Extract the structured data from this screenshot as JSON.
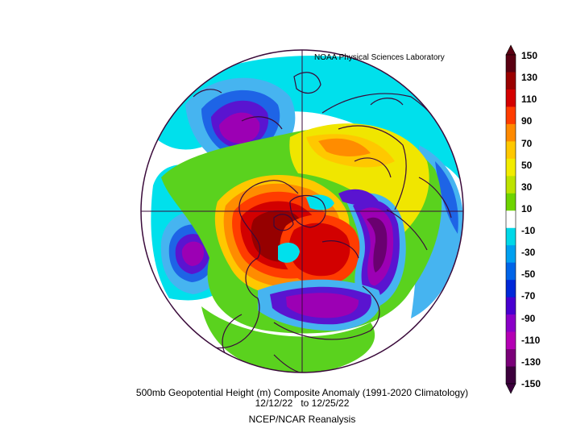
{
  "credit": "NOAA Physical Sciences Laboratory",
  "title_line1": "500mb Geopotential Height (m) Composite Anomaly (1991-2020 Climatology)",
  "title_line2": "12/12/22   to 12/25/22",
  "title_line3": "NCEP/NCAR Reanalysis",
  "colorbar": {
    "labels": [
      "150",
      "130",
      "110",
      "90",
      "70",
      "50",
      "30",
      "10",
      "-10",
      "-30",
      "-50",
      "-70",
      "-90",
      "-110",
      "-130",
      "-150"
    ],
    "colors": [
      "#5a0012",
      "#9a0000",
      "#d40000",
      "#ff3c00",
      "#ff8a00",
      "#ffc800",
      "#f2ec00",
      "#bde300",
      "#6ed400",
      "#ffffff",
      "#00d8e8",
      "#00a0f0",
      "#0064e8",
      "#0028d8",
      "#4800d0",
      "#8a00c8",
      "#b400b4",
      "#7a0078",
      "#3c003c"
    ],
    "top_arrow_color": "#5a0012",
    "bottom_arrow_color": "#3c003c"
  },
  "map_colors": {
    "deep_purple": "#6a0070",
    "purple": "#9c00b4",
    "violet": "#5a14d0",
    "blue": "#1e64e6",
    "light_blue": "#46b4f0",
    "cyan": "#00e0ec",
    "green": "#5ad21e",
    "light_green": "#aadc00",
    "yellow": "#f0e600",
    "orange": "#ff8c00",
    "red_orange": "#ff3c00",
    "red": "#d20000",
    "dark_red": "#960000",
    "coast": "#3a0a3a"
  }
}
